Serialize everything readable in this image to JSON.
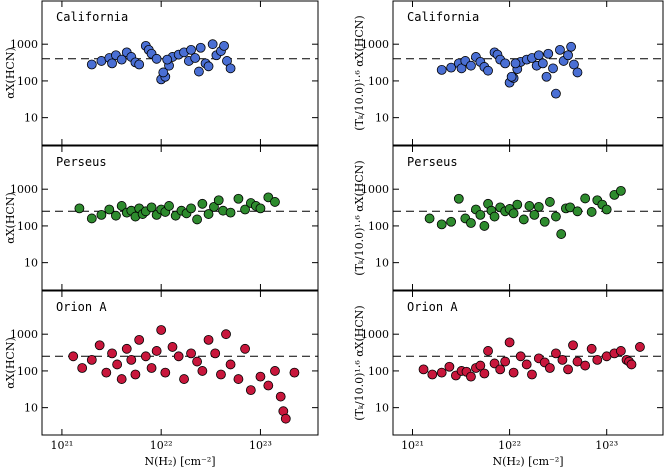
{
  "chart_data": [
    {
      "type": "scatter",
      "title": "California",
      "ylabel": "αX(HCN)",
      "color": "#4a6fd4",
      "xscale": "log",
      "yscale": "log",
      "xlim": [
        6.3e+20,
        3.8e+23
      ],
      "ylim": [
        1.8,
        15000
      ],
      "xticks": [
        1e+21,
        1e+22,
        1e+23
      ],
      "yticks": [
        10,
        100,
        1000
      ],
      "reference_line": 400,
      "x": [
        2e+21,
        2.5e+21,
        3e+21,
        3.2e+21,
        3.5e+21,
        4e+21,
        4.5e+21,
        5e+21,
        5.5e+21,
        6e+21,
        7e+21,
        7.5e+21,
        8e+21,
        9e+21,
        1e+22,
        1.1e+22,
        1.2e+22,
        1.3e+22,
        1.5e+22,
        1.7e+22,
        1.9e+22,
        2e+22,
        2.2e+22,
        2.5e+22,
        2.8e+22,
        3e+22,
        3.3e+22,
        3.6e+22,
        4e+22,
        4.3e+22,
        4.6e+22,
        5e+22,
        1.05e+22,
        1.15e+22,
        2.4e+22
      ],
      "y": [
        280,
        350,
        420,
        300,
        500,
        380,
        600,
        450,
        320,
        280,
        900,
        700,
        550,
        400,
        110,
        130,
        260,
        450,
        520,
        600,
        350,
        700,
        420,
        800,
        300,
        250,
        1000,
        500,
        650,
        900,
        350,
        220,
        170,
        380,
        180
      ]
    },
    {
      "type": "scatter",
      "title": "California",
      "ylabel": "(Tₖ/10.0)¹·⁶ αX(HCN)",
      "color": "#4a6fd4",
      "xscale": "log",
      "yscale": "log",
      "xlim": [
        6.3e+20,
        3.8e+23
      ],
      "ylim": [
        1.8,
        15000
      ],
      "xticks": [
        1e+21,
        1e+22,
        1e+23
      ],
      "yticks": [
        10,
        100,
        1000
      ],
      "reference_line": 400,
      "x": [
        2e+21,
        2.5e+21,
        3e+21,
        3.2e+21,
        3.5e+21,
        4e+21,
        4.5e+21,
        5e+21,
        5.5e+21,
        6e+21,
        7e+21,
        7.5e+21,
        8e+21,
        9e+21,
        1e+22,
        1.1e+22,
        1.2e+22,
        1.3e+22,
        1.5e+22,
        1.7e+22,
        1.9e+22,
        2e+22,
        2.2e+22,
        2.5e+22,
        2.8e+22,
        3e+22,
        3.3e+22,
        3.6e+22,
        4e+22,
        4.3e+22,
        4.6e+22,
        5e+22,
        1.05e+22,
        1.15e+22,
        2.4e+22
      ],
      "y": [
        200,
        230,
        300,
        220,
        350,
        260,
        450,
        330,
        240,
        190,
        600,
        520,
        380,
        300,
        90,
        120,
        210,
        330,
        380,
        420,
        260,
        500,
        300,
        550,
        220,
        45,
        700,
        350,
        500,
        850,
        280,
        170,
        130,
        300,
        130
      ]
    },
    {
      "type": "scatter",
      "title": "Perseus",
      "ylabel": "αX(HCN)",
      "color": "#2e8b2e",
      "xscale": "log",
      "yscale": "log",
      "xlim": [
        6.3e+20,
        3.8e+23
      ],
      "ylim": [
        1.8,
        15000
      ],
      "xticks": [
        1e+21,
        1e+22,
        1e+23
      ],
      "yticks": [
        10,
        100,
        1000
      ],
      "reference_line": 250,
      "x": [
        1.5e+21,
        2e+21,
        2.5e+21,
        3e+21,
        3.5e+21,
        4e+21,
        4.5e+21,
        5e+21,
        5.5e+21,
        6e+21,
        6.5e+21,
        7e+21,
        8e+21,
        9e+21,
        1e+22,
        1.1e+22,
        1.2e+22,
        1.4e+22,
        1.6e+22,
        1.8e+22,
        2e+22,
        2.3e+22,
        2.6e+22,
        3e+22,
        3.4e+22,
        3.8e+22,
        4.2e+22,
        5e+22,
        6e+22,
        7e+22,
        8e+22,
        9e+22,
        1e+23,
        1.2e+23,
        1.4e+23
      ],
      "y": [
        300,
        160,
        200,
        280,
        190,
        350,
        230,
        260,
        180,
        300,
        210,
        250,
        320,
        200,
        280,
        240,
        350,
        190,
        260,
        220,
        300,
        150,
        400,
        210,
        330,
        500,
        260,
        230,
        550,
        280,
        420,
        350,
        300,
        600,
        450
      ]
    },
    {
      "type": "scatter",
      "title": "Perseus",
      "ylabel": "(Tₖ/10.0)¹·⁶ αX(HCN)",
      "color": "#2e8b2e",
      "xscale": "log",
      "yscale": "log",
      "xlim": [
        6.3e+20,
        3.8e+23
      ],
      "ylim": [
        1.8,
        15000
      ],
      "xticks": [
        1e+21,
        1e+22,
        1e+23
      ],
      "yticks": [
        10,
        100,
        1000
      ],
      "reference_line": 250,
      "x": [
        1.5e+21,
        2e+21,
        2.5e+21,
        3e+21,
        3.5e+21,
        4e+21,
        4.5e+21,
        5e+21,
        5.5e+21,
        6e+21,
        6.5e+21,
        7e+21,
        8e+21,
        9e+21,
        1e+22,
        1.1e+22,
        1.2e+22,
        1.4e+22,
        1.6e+22,
        1.8e+22,
        2e+22,
        2.3e+22,
        2.6e+22,
        3e+22,
        3.4e+22,
        3.8e+22,
        4.2e+22,
        5e+22,
        6e+22,
        7e+22,
        8e+22,
        9e+22,
        1e+23,
        1.2e+23,
        1.4e+23
      ],
      "y": [
        160,
        110,
        130,
        550,
        160,
        120,
        280,
        200,
        100,
        400,
        260,
        180,
        320,
        250,
        290,
        220,
        380,
        150,
        350,
        200,
        330,
        130,
        450,
        180,
        60,
        300,
        320,
        250,
        560,
        240,
        500,
        380,
        280,
        700,
        900
      ]
    },
    {
      "type": "scatter",
      "title": "Orion A",
      "ylabel": "αX(HCN)",
      "xlabel": "N(H₂) [cm⁻²]",
      "color": "#c8173c",
      "xscale": "log",
      "yscale": "log",
      "xlim": [
        6.3e+20,
        3.8e+23
      ],
      "ylim": [
        1.8,
        15000
      ],
      "xticks": [
        {
          "value": 1e+21,
          "label": "10²¹"
        },
        {
          "value": 1e+22,
          "label": "10²²"
        },
        {
          "value": 1e+23,
          "label": "10²³"
        }
      ],
      "yticks": [
        10,
        100,
        1000
      ],
      "reference_line": 250,
      "x": [
        1.3e+21,
        1.6e+21,
        2e+21,
        2.4e+21,
        2.8e+21,
        3.2e+21,
        3.6e+21,
        4e+21,
        4.5e+21,
        5e+21,
        5.5e+21,
        6e+21,
        7e+21,
        8e+21,
        9e+21,
        1e+22,
        1.1e+22,
        1.3e+22,
        1.5e+22,
        1.7e+22,
        2e+22,
        2.3e+22,
        2.6e+22,
        3e+22,
        3.5e+22,
        4e+22,
        4.5e+22,
        5e+22,
        6e+22,
        7e+22,
        8e+22,
        1e+23,
        1.2e+23,
        1.4e+23,
        1.6e+23,
        1.7e+23,
        1.8e+23,
        2.2e+23
      ],
      "y": [
        250,
        120,
        200,
        500,
        90,
        300,
        150,
        60,
        400,
        200,
        80,
        700,
        250,
        120,
        350,
        1300,
        90,
        450,
        250,
        60,
        300,
        180,
        100,
        700,
        300,
        80,
        1000,
        150,
        60,
        400,
        30,
        70,
        40,
        100,
        20,
        8,
        5,
        90
      ]
    },
    {
      "type": "scatter",
      "title": "Orion A",
      "ylabel": "(Tₖ/10.0)¹·⁶ αX(HCN)",
      "xlabel": "N(H₂) [cm⁻²]",
      "color": "#c8173c",
      "xscale": "log",
      "yscale": "log",
      "xlim": [
        6.3e+20,
        3.8e+23
      ],
      "ylim": [
        1.8,
        15000
      ],
      "xticks": [
        {
          "value": 1e+21,
          "label": "10²¹"
        },
        {
          "value": 1e+22,
          "label": "10²²"
        },
        {
          "value": 1e+23,
          "label": "10²³"
        }
      ],
      "yticks": [
        10,
        100,
        1000
      ],
      "reference_line": 250,
      "x": [
        1.3e+21,
        1.6e+21,
        2e+21,
        2.4e+21,
        2.8e+21,
        3.2e+21,
        3.6e+21,
        4e+21,
        4.5e+21,
        5e+21,
        5.5e+21,
        6e+21,
        7e+21,
        8e+21,
        9e+21,
        1e+22,
        1.1e+22,
        1.3e+22,
        1.5e+22,
        1.7e+22,
        2e+22,
        2.3e+22,
        2.6e+22,
        3e+22,
        3.5e+22,
        4e+22,
        4.5e+22,
        5e+22,
        6e+22,
        7e+22,
        8e+22,
        1e+23,
        1.2e+23,
        1.4e+23,
        1.6e+23,
        1.7e+23,
        1.8e+23,
        2.2e+23
      ],
      "y": [
        110,
        80,
        90,
        130,
        75,
        100,
        95,
        70,
        120,
        140,
        85,
        350,
        160,
        110,
        180,
        600,
        90,
        250,
        150,
        80,
        220,
        170,
        120,
        300,
        200,
        110,
        500,
        180,
        140,
        400,
        200,
        250,
        300,
        350,
        200,
        180,
        150,
        450
      ]
    }
  ]
}
